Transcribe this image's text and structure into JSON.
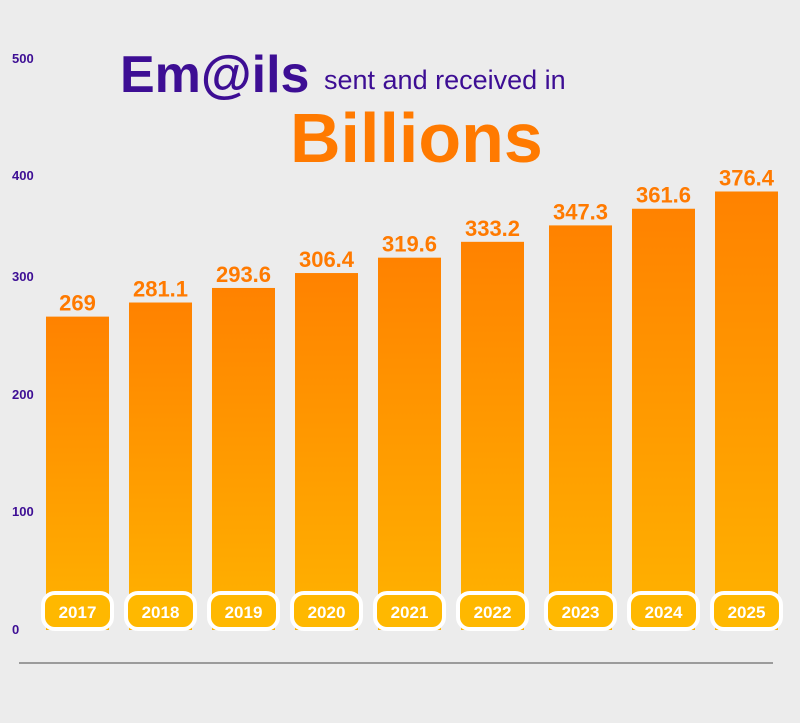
{
  "title": {
    "part1": "Em@ils",
    "part2": "sent and received in",
    "part3": "Billions"
  },
  "colors": {
    "purple": "#3d0e94",
    "orange": "#ff7a00",
    "bar_top": "#ff8200",
    "bar_bottom": "#ffb300",
    "background": "#ececec",
    "axis_text": "#3d0e94",
    "label_text": "#ff7a00"
  },
  "chart_data": {
    "type": "bar",
    "categories": [
      "2017",
      "2018",
      "2019",
      "2020",
      "2021",
      "2022",
      "2023",
      "2024",
      "2025"
    ],
    "values": [
      269,
      281.1,
      293.6,
      306.4,
      319.6,
      333.2,
      347.3,
      361.6,
      376.4
    ],
    "value_labels": [
      "269",
      "281.1",
      "293.6",
      "306.4",
      "319.6",
      "333.2",
      "347.3",
      "361.6",
      "376.4"
    ],
    "yticks": [
      "0",
      "100",
      "200",
      "300",
      "400",
      "500"
    ],
    "ylim": [
      0,
      500
    ],
    "title": "Em@ils sent and received in Billions",
    "xlabel": "",
    "ylabel": "",
    "grid": false,
    "legend": "none"
  }
}
